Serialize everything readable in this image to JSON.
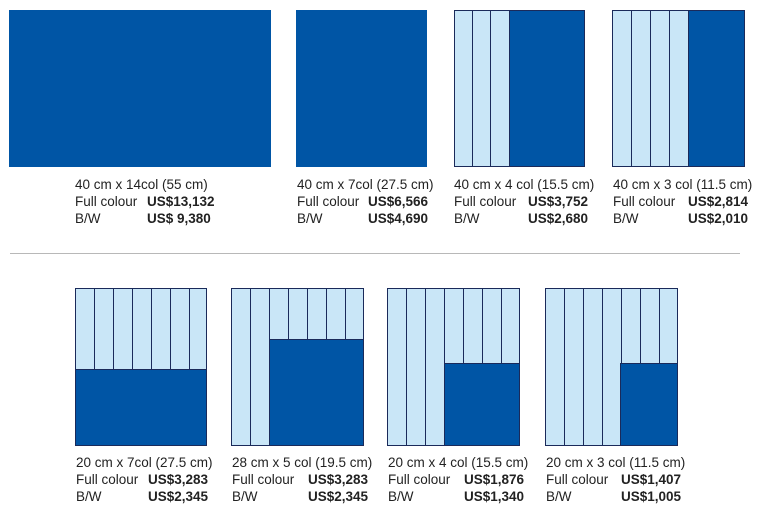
{
  "colors": {
    "ad_blue": "#0055a5",
    "column_light": "#c9e6f7",
    "outline": "#1a2a5a",
    "divider": "#b8b8b8"
  },
  "row1": [
    {
      "size_label": "40 cm x 14col   (55 cm)",
      "colour_label": "Full colour",
      "colour_price": "US$13,132",
      "bw_label": "B/W",
      "bw_price": "US$  9,380"
    },
    {
      "size_label": "40 cm x 7col (27.5 cm)",
      "colour_label": "Full colour",
      "colour_price": "US$6,566",
      "bw_label": "B/W",
      "bw_price": "US$4,690"
    },
    {
      "size_label": "40 cm x 4 col (15.5 cm)",
      "colour_label": "Full colour",
      "colour_price": "US$3,752",
      "bw_label": "B/W",
      "bw_price": "US$2,680"
    },
    {
      "size_label": "40 cm x 3 col (11.5 cm)",
      "colour_label": "Full colour",
      "colour_price": "US$2,814",
      "bw_label": "B/W",
      "bw_price": "US$2,010"
    }
  ],
  "row2": [
    {
      "size_label": "20 cm x 7col (27.5 cm)",
      "colour_label": "Full colour",
      "colour_price": "US$3,283",
      "bw_label": "B/W",
      "bw_price": "US$2,345"
    },
    {
      "size_label": "28 cm x 5 col (19.5 cm)",
      "colour_label": "Full colour",
      "colour_price": "US$3,283",
      "bw_label": "B/W",
      "bw_price": "US$2,345"
    },
    {
      "size_label": "20 cm x 4 col (15.5 cm)",
      "colour_label": "Full colour",
      "colour_price": "US$1,876",
      "bw_label": "B/W",
      "bw_price": "US$1,340"
    },
    {
      "size_label": "20 cm x 3 col (11.5 cm)",
      "colour_label": "Full colour",
      "colour_price": "US$1,407",
      "bw_label": "B/W",
      "bw_price": "US$1,005"
    }
  ]
}
